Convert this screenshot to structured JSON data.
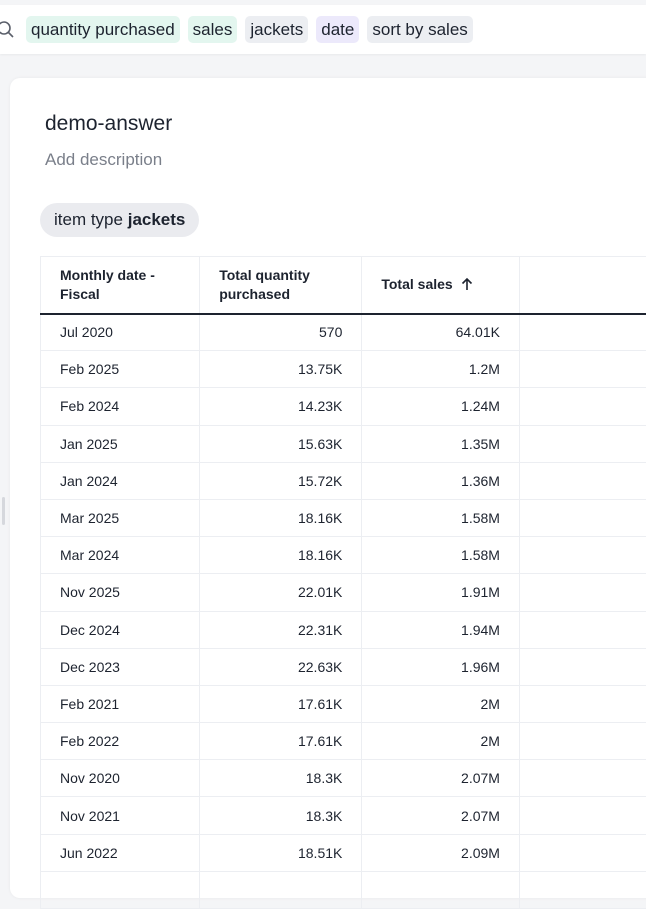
{
  "search": {
    "tokens": [
      {
        "label": "quantity purchased",
        "kind": "measure"
      },
      {
        "label": "sales",
        "kind": "measure"
      },
      {
        "label": "jackets",
        "kind": "attribute"
      },
      {
        "label": "date",
        "kind": "date"
      },
      {
        "label": "sort by sales",
        "kind": "attribute"
      }
    ]
  },
  "answer": {
    "title": "demo-answer",
    "description_placeholder": "Add description",
    "filter": {
      "prefix": "item type",
      "value": "jackets"
    }
  },
  "table": {
    "columns": [
      "Monthly date - Fiscal",
      "Total quantity purchased",
      "Total sales",
      "",
      ""
    ],
    "sort": {
      "column": "Total sales",
      "direction": "ascending",
      "icon": "arrow-up-icon"
    },
    "rows": [
      [
        "Jul 2020",
        "570",
        "64.01K"
      ],
      [
        "Feb 2025",
        "13.75K",
        "1.2M"
      ],
      [
        "Feb 2024",
        "14.23K",
        "1.24M"
      ],
      [
        "Jan 2025",
        "15.63K",
        "1.35M"
      ],
      [
        "Jan 2024",
        "15.72K",
        "1.36M"
      ],
      [
        "Mar 2025",
        "18.16K",
        "1.58M"
      ],
      [
        "Mar 2024",
        "18.16K",
        "1.58M"
      ],
      [
        "Nov 2025",
        "22.01K",
        "1.91M"
      ],
      [
        "Dec 2024",
        "22.31K",
        "1.94M"
      ],
      [
        "Dec 2023",
        "22.63K",
        "1.96M"
      ],
      [
        "Feb 2021",
        "17.61K",
        "2M"
      ],
      [
        "Feb 2022",
        "17.61K",
        "2M"
      ],
      [
        "Nov 2020",
        "18.3K",
        "2.07M"
      ],
      [
        "Nov 2021",
        "18.3K",
        "2.07M"
      ],
      [
        "Jun 2022",
        "18.51K",
        "2.09M"
      ]
    ]
  }
}
